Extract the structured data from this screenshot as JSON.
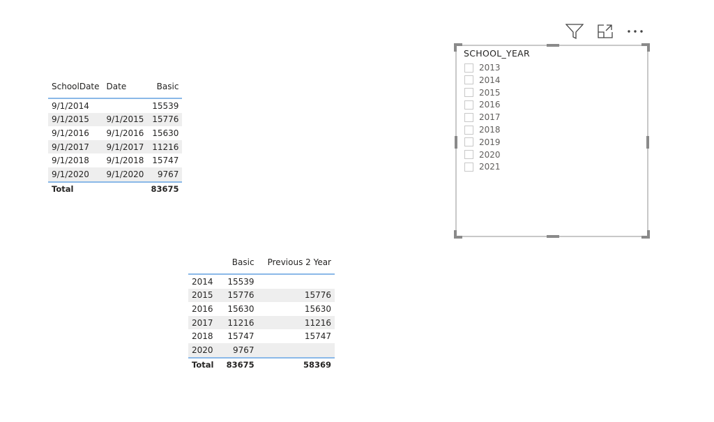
{
  "table1": {
    "headers": [
      "SchoolDate",
      "Date",
      "Basic"
    ],
    "rows": [
      [
        "9/1/2014",
        "",
        "15539"
      ],
      [
        "9/1/2015",
        "9/1/2015",
        "15776"
      ],
      [
        "9/1/2016",
        "9/1/2016",
        "15630"
      ],
      [
        "9/1/2017",
        "9/1/2017",
        "11216"
      ],
      [
        "9/1/2018",
        "9/1/2018",
        "15747"
      ],
      [
        "9/1/2020",
        "9/1/2020",
        "9767"
      ]
    ],
    "total_label": "Total",
    "total_basic": "83675"
  },
  "table2": {
    "headers": [
      "",
      "Basic",
      "Previous 2 Year"
    ],
    "rows": [
      [
        "2014",
        "15539",
        ""
      ],
      [
        "2015",
        "15776",
        "15776"
      ],
      [
        "2016",
        "15630",
        "15630"
      ],
      [
        "2017",
        "11216",
        "11216"
      ],
      [
        "2018",
        "15747",
        "15747"
      ],
      [
        "2020",
        "9767",
        ""
      ]
    ],
    "total_label": "Total",
    "total_basic": "83675",
    "total_prev": "58369"
  },
  "slicer": {
    "title": "SCHOOL_YEAR",
    "items": [
      "2013",
      "2014",
      "2015",
      "2016",
      "2017",
      "2018",
      "2019",
      "2020",
      "2021"
    ]
  },
  "visual_header": {
    "icons": [
      "filter-icon",
      "focus-mode-icon",
      "more-options-icon"
    ]
  }
}
